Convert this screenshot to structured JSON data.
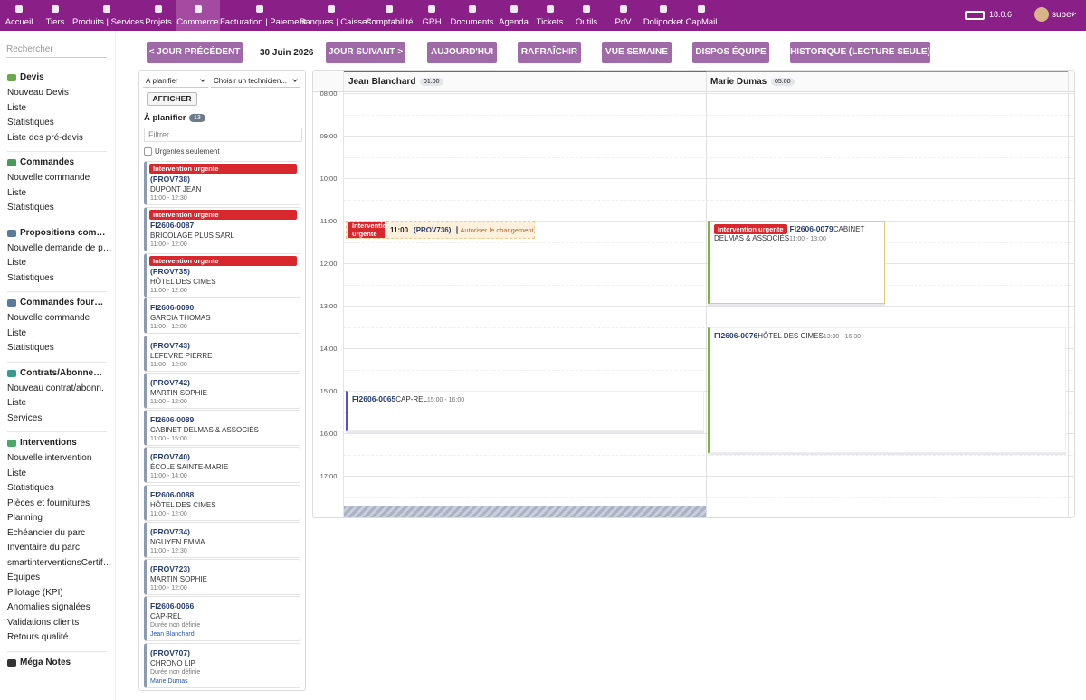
{
  "topnav": {
    "items": [
      "Accueil",
      "Tiers",
      "Produits | Services",
      "Projets",
      "Commerce",
      "Facturation | Paiement",
      "Banques | Caisses",
      "Comptabilité",
      "GRH",
      "Documents",
      "Agenda",
      "Tickets",
      "Outils",
      "PdV",
      "Dolipocket",
      "CapMail"
    ],
    "active": "Commerce",
    "version": "18.0.6",
    "user": "super"
  },
  "sidebar": {
    "search": "Rechercher",
    "sections": [
      {
        "title": "Devis",
        "color": "#6aa84f",
        "items": [
          "Nouveau Devis",
          "Liste",
          "Statistiques",
          "Liste des pré-devis"
        ]
      },
      {
        "title": "Commandes",
        "color": "#4a9a5a",
        "items": [
          "Nouvelle commande",
          "Liste",
          "Statistiques"
        ]
      },
      {
        "title": "Propositions commerciales",
        "color": "#5a7a9a",
        "items": [
          "Nouvelle demande de prix",
          "Liste",
          "Statistiques"
        ]
      },
      {
        "title": "Commandes fournisseurs",
        "color": "#5a7a9a",
        "items": [
          "Nouvelle commande",
          "Liste",
          "Statistiques"
        ]
      },
      {
        "title": "Contrats/Abonnements",
        "color": "#3a9a8a",
        "items": [
          "Nouveau contrat/abonn.",
          "Liste",
          "Services"
        ]
      },
      {
        "title": "Interventions",
        "color": "#4aa86a",
        "items": [
          "Nouvelle intervention",
          "Liste",
          "Statistiques",
          "Pièces et fournitures",
          "Planning",
          "Échéancier du parc",
          "Inventaire du parc",
          "smartinterventionsCertificats",
          "Équipes",
          "Pilotage (KPI)",
          "Anomalies signalées",
          "Validations clients",
          "Retours qualité"
        ]
      },
      {
        "title": "Méga Notes",
        "color": "#333333",
        "items": []
      }
    ]
  },
  "toolbar": {
    "prev": "< JOUR PRÉCÉDENT",
    "date": "30 Juin 2026",
    "buttons": [
      "JOUR SUIVANT >",
      "AUJOURD'HUI",
      "RAFRAÎCHIR",
      "VUE SEMAINE",
      "DISPOS ÉQUIPE",
      "HISTORIQUE (LECTURE SEULE)"
    ]
  },
  "panel": {
    "status_select": "À planifier",
    "tech_select": "Choisir un technicien...",
    "show_button": "AFFICHER",
    "heading": "À planifier",
    "count": "13",
    "filter": "Filtrer...",
    "urgent_only": "Urgentes seulement",
    "cards": [
      {
        "tag": "Intervention urgente",
        "ref": "(PROV738)",
        "client": "DUPONT JEAN",
        "time": "11:00 - 12:30"
      },
      {
        "tag": "Intervention urgente",
        "ref": "FI2606-0087",
        "client": "BRICOLAGE PLUS SARL",
        "time": "11:00 - 12:00"
      },
      {
        "tag": "Intervention urgente",
        "ref": "(PROV735)",
        "client": "HÔTEL DES CIMES",
        "time": "11:00 - 12:00"
      },
      {
        "ref": "FI2606-0090",
        "client": "GARCIA THOMAS",
        "time": "11:00 - 12:00"
      },
      {
        "ref": "(PROV743)",
        "client": "LEFEVRE PIERRE",
        "time": "11:00 - 12:00"
      },
      {
        "ref": "(PROV742)",
        "client": "MARTIN SOPHIE",
        "time": "11:00 - 12:00"
      },
      {
        "ref": "FI2606-0089",
        "client": "CABINET DELMAS & ASSOCIÉS",
        "time": "11:00 - 15:00"
      },
      {
        "ref": "(PROV740)",
        "client": "ÉCOLE SAINTE-MARIE",
        "time": "11:00 - 14:00"
      },
      {
        "ref": "FI2606-0088",
        "client": "HÔTEL DES CIMES",
        "time": "11:00 - 12:00"
      },
      {
        "ref": "(PROV734)",
        "client": "NGUYEN EMMA",
        "time": "11:00 - 12:30"
      },
      {
        "ref": "(PROV723)",
        "client": "MARTIN SOPHIE",
        "time": "11:00 - 12:00"
      },
      {
        "ref": "FI2606-0066",
        "client": "CAP-REL",
        "time": "Durée non définie",
        "tech": "Jean Blanchard"
      },
      {
        "ref": "(PROV707)",
        "client": "CHRONO LIP",
        "time": "Durée non définie",
        "tech": "Marie Dumas"
      }
    ]
  },
  "calendar": {
    "hours": [
      "08:00",
      "09:00",
      "10:00",
      "11:00",
      "12:00",
      "13:00",
      "14:00",
      "15:00",
      "16:00",
      "17:00"
    ],
    "columns": [
      {
        "name": "Jean Blanchard",
        "load": "01:00",
        "color": "#6a5acd",
        "events": [
          {
            "tag": "Intervention urgente",
            "start": "11:00",
            "ref": "(PROV736)",
            "check": "Autoriser le changement d'heure",
            "style": "urgent"
          },
          {
            "ref": "FI2606-0065",
            "client": "CAP-REL",
            "time": "15:00 - 16:00",
            "style": "normal",
            "border": "#5a4fcf"
          }
        ]
      },
      {
        "name": "Marie Dumas",
        "load": "05:00",
        "color": "#7cb342",
        "events": [
          {
            "tag": "Intervention urgente",
            "ref": "FI2606-0079",
            "client": "CABINET DELMAS & ASSOCIÉS",
            "time": "11:00 - 13:00",
            "style": "urgentbox",
            "border": "#7cb342"
          },
          {
            "ref": "FI2606-0076",
            "client": "HÔTEL DES CIMES",
            "time": "13:30 - 16:30",
            "style": "normal",
            "border": "#7cb342"
          }
        ]
      }
    ]
  }
}
